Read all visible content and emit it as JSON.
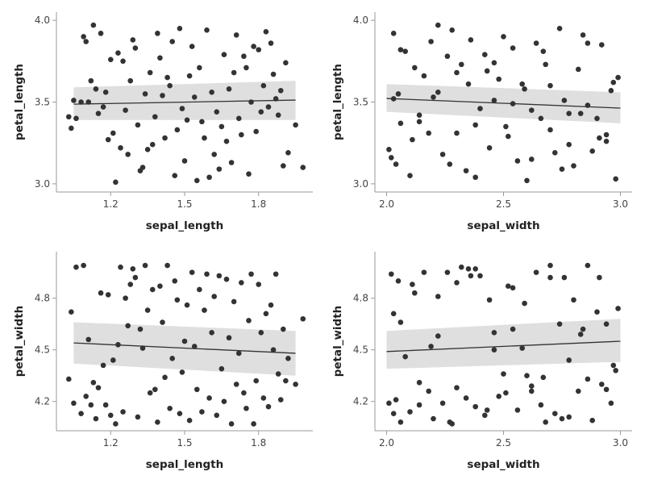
{
  "chart_data": [
    {
      "type": "scatter",
      "xlabel": "sepal_length",
      "ylabel": "petal_length",
      "xlim": [
        0.98,
        2.02
      ],
      "ylim": [
        2.95,
        4.05
      ],
      "xticks": [
        "1.2",
        "1.5",
        "1.8"
      ],
      "yticks": [
        "3.0",
        "3.5",
        "4.0"
      ],
      "points": {
        "x": [
          1.03,
          1.04,
          1.05,
          1.06,
          1.08,
          1.09,
          1.1,
          1.11,
          1.12,
          1.13,
          1.14,
          1.15,
          1.16,
          1.17,
          1.18,
          1.19,
          1.2,
          1.21,
          1.22,
          1.23,
          1.24,
          1.25,
          1.26,
          1.27,
          1.28,
          1.29,
          1.3,
          1.31,
          1.32,
          1.33,
          1.34,
          1.35,
          1.36,
          1.37,
          1.38,
          1.39,
          1.4,
          1.41,
          1.42,
          1.43,
          1.44,
          1.45,
          1.46,
          1.47,
          1.48,
          1.49,
          1.5,
          1.51,
          1.52,
          1.53,
          1.54,
          1.55,
          1.56,
          1.57,
          1.58,
          1.59,
          1.6,
          1.61,
          1.62,
          1.63,
          1.64,
          1.65,
          1.66,
          1.67,
          1.68,
          1.69,
          1.7,
          1.71,
          1.72,
          1.73,
          1.74,
          1.75,
          1.76,
          1.77,
          1.78,
          1.79,
          1.8,
          1.81,
          1.82,
          1.83,
          1.84,
          1.85,
          1.86,
          1.87,
          1.88,
          1.89,
          1.9,
          1.91,
          1.92,
          1.95,
          1.98
        ],
        "y": [
          3.41,
          3.34,
          3.51,
          3.4,
          3.5,
          3.9,
          3.87,
          3.5,
          3.63,
          3.97,
          3.58,
          3.43,
          3.92,
          3.47,
          3.56,
          3.27,
          3.76,
          3.31,
          3.01,
          3.8,
          3.22,
          3.75,
          3.45,
          3.18,
          3.63,
          3.88,
          3.83,
          3.36,
          3.08,
          3.1,
          3.55,
          3.21,
          3.68,
          3.24,
          3.41,
          3.92,
          3.77,
          3.54,
          3.28,
          3.65,
          3.6,
          3.87,
          3.05,
          3.33,
          3.95,
          3.46,
          3.14,
          3.39,
          3.66,
          3.84,
          3.53,
          3.02,
          3.71,
          3.38,
          3.28,
          3.94,
          3.04,
          3.56,
          3.18,
          3.44,
          3.09,
          3.35,
          3.79,
          3.26,
          3.58,
          3.13,
          3.68,
          3.91,
          3.4,
          3.3,
          3.78,
          3.71,
          3.06,
          3.5,
          3.84,
          3.32,
          3.82,
          3.44,
          3.6,
          3.93,
          3.47,
          3.86,
          3.67,
          3.52,
          3.42,
          3.57,
          3.11,
          3.74,
          3.19,
          3.36,
          3.1
        ]
      },
      "fit": {
        "x": [
          1.05,
          1.95
        ],
        "y": [
          3.487,
          3.512
        ],
        "ci_low": [
          3.39,
          3.39
        ],
        "ci_high": [
          3.59,
          3.63
        ]
      }
    },
    {
      "type": "scatter",
      "xlabel": "sepal_width",
      "ylabel": "petal_length",
      "xlim": [
        1.95,
        3.05
      ],
      "ylim": [
        2.95,
        4.05
      ],
      "xticks": [
        "2.0",
        "2.5",
        "3.0"
      ],
      "yticks": [
        "3.0",
        "3.5",
        "4.0"
      ],
      "points": {
        "x": [
          2.01,
          2.02,
          2.03,
          2.04,
          2.05,
          2.06,
          2.08,
          2.1,
          2.12,
          2.14,
          2.16,
          2.18,
          2.2,
          2.22,
          2.24,
          2.26,
          2.28,
          2.3,
          2.32,
          2.34,
          2.36,
          2.38,
          2.4,
          2.42,
          2.44,
          2.46,
          2.48,
          2.5,
          2.52,
          2.54,
          2.56,
          2.58,
          2.6,
          2.62,
          2.64,
          2.66,
          2.68,
          2.7,
          2.72,
          2.74,
          2.76,
          2.78,
          2.8,
          2.82,
          2.84,
          2.86,
          2.88,
          2.9,
          2.92,
          2.94,
          2.96,
          2.98,
          2.99,
          2.03,
          2.11,
          2.19,
          2.27,
          2.35,
          2.43,
          2.51,
          2.59,
          2.67,
          2.75,
          2.83,
          2.91,
          2.97,
          2.06,
          2.14,
          2.22,
          2.3,
          2.38,
          2.46,
          2.54,
          2.62,
          2.7,
          2.78,
          2.86,
          2.94
        ],
        "y": [
          3.21,
          3.16,
          3.92,
          3.12,
          3.55,
          3.37,
          3.81,
          3.05,
          3.71,
          3.42,
          3.66,
          3.31,
          3.53,
          3.97,
          3.18,
          3.78,
          3.94,
          3.31,
          3.73,
          3.08,
          3.88,
          3.36,
          3.46,
          3.79,
          3.22,
          3.51,
          3.64,
          3.9,
          3.29,
          3.83,
          3.14,
          3.61,
          3.02,
          3.45,
          3.86,
          3.4,
          3.73,
          3.33,
          3.19,
          3.95,
          3.51,
          3.24,
          3.11,
          3.7,
          3.91,
          3.48,
          3.2,
          3.4,
          3.85,
          3.3,
          3.57,
          3.03,
          3.65,
          3.52,
          3.27,
          3.87,
          3.12,
          3.61,
          3.69,
          3.35,
          3.58,
          3.81,
          3.09,
          3.43,
          3.28,
          3.62,
          3.82,
          3.38,
          3.56,
          3.68,
          3.04,
          3.74,
          3.49,
          3.15,
          3.6,
          3.43,
          3.86,
          3.26
        ]
      },
      "fit": {
        "x": [
          2.0,
          3.0
        ],
        "y": [
          3.522,
          3.463
        ],
        "ci_low": [
          3.44,
          3.37
        ],
        "ci_high": [
          3.61,
          3.56
        ]
      }
    },
    {
      "type": "scatter",
      "xlabel": "sepal_length",
      "ylabel": "petal_width",
      "xlim": [
        0.98,
        2.02
      ],
      "ylim": [
        4.03,
        5.07
      ],
      "xticks": [
        "1.2",
        "1.5",
        "1.8"
      ],
      "yticks": [
        "4.2",
        "4.5",
        "4.8"
      ],
      "points": {
        "x": [
          1.03,
          1.04,
          1.05,
          1.06,
          1.08,
          1.09,
          1.1,
          1.11,
          1.12,
          1.13,
          1.14,
          1.15,
          1.16,
          1.17,
          1.18,
          1.19,
          1.2,
          1.21,
          1.22,
          1.23,
          1.24,
          1.25,
          1.26,
          1.27,
          1.28,
          1.29,
          1.3,
          1.31,
          1.32,
          1.33,
          1.34,
          1.35,
          1.36,
          1.37,
          1.38,
          1.39,
          1.4,
          1.41,
          1.42,
          1.43,
          1.44,
          1.45,
          1.46,
          1.47,
          1.48,
          1.49,
          1.5,
          1.51,
          1.52,
          1.53,
          1.54,
          1.55,
          1.56,
          1.57,
          1.58,
          1.59,
          1.6,
          1.61,
          1.62,
          1.63,
          1.64,
          1.65,
          1.66,
          1.67,
          1.68,
          1.69,
          1.7,
          1.71,
          1.72,
          1.73,
          1.74,
          1.75,
          1.76,
          1.77,
          1.78,
          1.79,
          1.8,
          1.81,
          1.82,
          1.83,
          1.84,
          1.85,
          1.86,
          1.87,
          1.88,
          1.89,
          1.9,
          1.91,
          1.92,
          1.95,
          1.98
        ],
        "y": [
          4.33,
          4.72,
          4.19,
          4.98,
          4.13,
          4.99,
          4.23,
          4.56,
          4.18,
          4.31,
          4.1,
          4.28,
          4.83,
          4.41,
          4.18,
          4.82,
          4.12,
          4.44,
          4.07,
          4.53,
          4.98,
          4.14,
          4.8,
          4.64,
          4.88,
          4.97,
          4.92,
          4.11,
          4.62,
          4.51,
          4.99,
          4.73,
          4.25,
          4.85,
          4.27,
          4.08,
          4.87,
          4.66,
          4.34,
          4.99,
          4.16,
          4.45,
          4.9,
          4.79,
          4.13,
          4.37,
          4.55,
          4.76,
          4.09,
          4.95,
          4.52,
          4.27,
          4.85,
          4.14,
          4.73,
          4.94,
          4.22,
          4.6,
          4.81,
          4.12,
          4.93,
          4.39,
          4.2,
          4.91,
          4.57,
          4.07,
          4.78,
          4.3,
          4.48,
          4.89,
          4.25,
          4.16,
          4.67,
          4.94,
          4.07,
          4.32,
          4.88,
          4.6,
          4.22,
          4.71,
          4.17,
          4.76,
          4.5,
          4.94,
          4.36,
          4.21,
          4.62,
          4.32,
          4.45,
          4.3,
          4.68
        ]
      },
      "fit": {
        "x": [
          1.05,
          1.95
        ],
        "y": [
          4.54,
          4.48
        ],
        "ci_low": [
          4.42,
          4.35
        ],
        "ci_high": [
          4.66,
          4.61
        ]
      }
    },
    {
      "type": "scatter",
      "xlabel": "sepal_width",
      "ylabel": "petal_width",
      "xlim": [
        1.95,
        3.05
      ],
      "ylim": [
        4.03,
        5.07
      ],
      "xticks": [
        "2.0",
        "2.5",
        "3.0"
      ],
      "yticks": [
        "4.2",
        "4.5",
        "4.8"
      ],
      "points": {
        "x": [
          2.01,
          2.02,
          2.03,
          2.04,
          2.05,
          2.06,
          2.08,
          2.1,
          2.12,
          2.14,
          2.16,
          2.18,
          2.2,
          2.22,
          2.24,
          2.26,
          2.28,
          2.3,
          2.32,
          2.34,
          2.36,
          2.38,
          2.4,
          2.42,
          2.44,
          2.46,
          2.48,
          2.5,
          2.52,
          2.54,
          2.56,
          2.58,
          2.6,
          2.62,
          2.64,
          2.66,
          2.68,
          2.7,
          2.72,
          2.74,
          2.76,
          2.78,
          2.8,
          2.82,
          2.84,
          2.86,
          2.88,
          2.9,
          2.92,
          2.94,
          2.96,
          2.98,
          2.99,
          2.03,
          2.11,
          2.19,
          2.27,
          2.35,
          2.43,
          2.51,
          2.59,
          2.67,
          2.75,
          2.83,
          2.91,
          2.97,
          2.06,
          2.14,
          2.22,
          2.3,
          2.38,
          2.46,
          2.54,
          2.62,
          2.7,
          2.78,
          2.86,
          2.94
        ],
        "y": [
          4.19,
          4.94,
          4.71,
          4.21,
          4.9,
          4.08,
          4.46,
          4.14,
          4.83,
          4.31,
          4.95,
          4.26,
          4.1,
          4.81,
          4.19,
          4.95,
          4.07,
          4.89,
          4.98,
          4.22,
          4.93,
          4.17,
          4.93,
          4.12,
          4.79,
          4.6,
          4.23,
          4.36,
          4.87,
          4.62,
          4.15,
          4.51,
          4.35,
          4.29,
          4.95,
          4.18,
          4.08,
          4.99,
          4.13,
          4.65,
          4.92,
          4.11,
          4.79,
          4.26,
          4.62,
          4.99,
          4.09,
          4.72,
          4.3,
          4.65,
          4.19,
          4.38,
          4.74,
          4.13,
          4.88,
          4.52,
          4.08,
          4.97,
          4.15,
          4.25,
          4.77,
          4.34,
          4.1,
          4.59,
          4.92,
          4.41,
          4.66,
          4.18,
          4.58,
          4.28,
          4.97,
          4.5,
          4.86,
          4.26,
          4.92,
          4.44,
          4.33,
          4.27
        ]
      },
      "fit": {
        "x": [
          2.0,
          3.0
        ],
        "y": [
          4.49,
          4.55
        ],
        "ci_low": [
          4.39,
          4.43
        ],
        "ci_high": [
          4.61,
          4.68
        ]
      }
    }
  ]
}
